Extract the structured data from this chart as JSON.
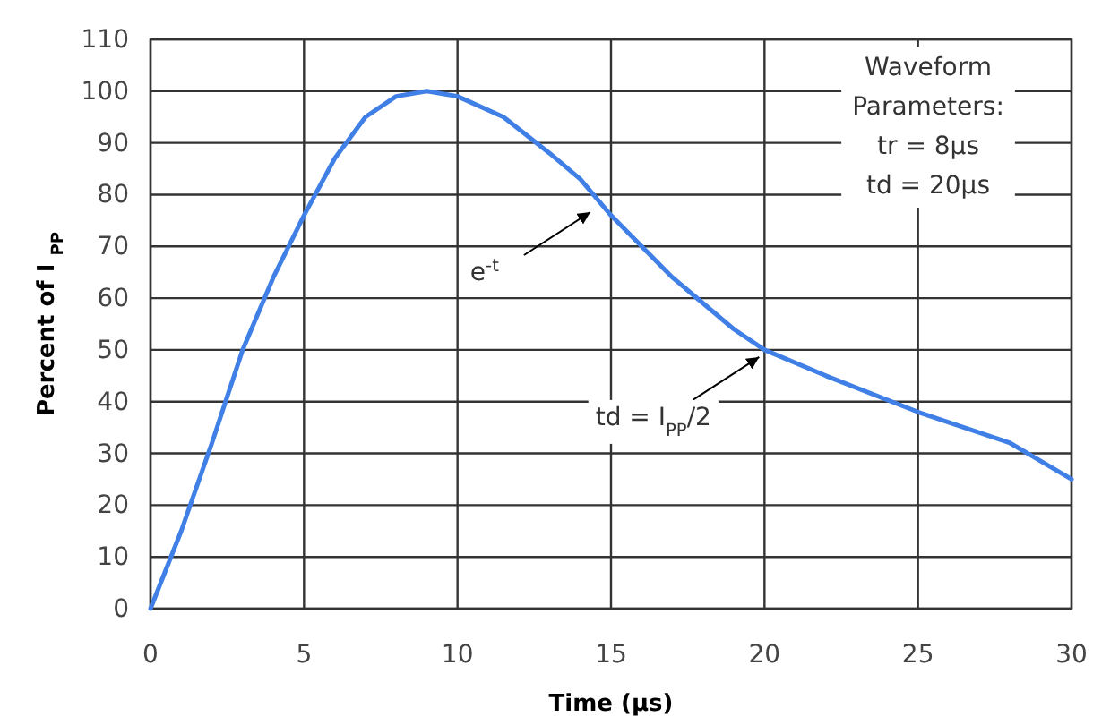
{
  "chart_data": {
    "type": "line",
    "xlabel": "Time (µs)",
    "ylabel": "Percent of I $_{PP}$",
    "x": [
      0,
      1,
      2,
      3,
      4,
      5,
      6,
      7,
      8,
      9,
      10,
      11.5,
      13,
      14,
      15,
      17,
      19,
      20,
      22,
      25,
      28,
      30
    ],
    "series": [
      {
        "color": "#3f7fe6",
        "values": [
          0,
          15,
          32,
          50,
          64,
          76,
          87,
          95,
          99,
          100,
          99,
          95,
          88,
          83,
          76,
          64,
          54,
          50,
          45,
          38,
          32,
          25
        ]
      }
    ],
    "xlim": [
      0,
      30
    ],
    "xticks": [
      0,
      5,
      10,
      15,
      20,
      25,
      30
    ],
    "ylim": [
      0,
      110
    ],
    "yticks": [
      0,
      10,
      20,
      30,
      40,
      50,
      60,
      70,
      80,
      90,
      100,
      110
    ],
    "grid": true,
    "marker": "none",
    "line_style": "solid",
    "annotations": [
      {
        "text": "e$^{-t}$",
        "x": 14.5,
        "y": 78
      },
      {
        "text": "td = I$_{PP}$/2",
        "x": 20,
        "y": 50
      },
      "Waveform",
      "Parameters:",
      "tr = 8µs",
      "td = 20µs"
    ]
  }
}
